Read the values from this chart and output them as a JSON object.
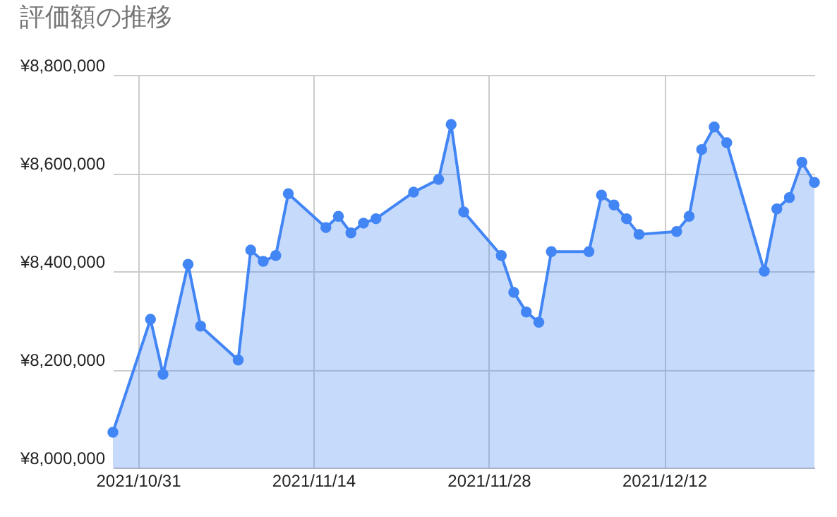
{
  "chart_data": {
    "type": "area",
    "title": "評価額の推移",
    "x": [
      "2021-10-29",
      "2021-11-01",
      "2021-11-02",
      "2021-11-04",
      "2021-11-05",
      "2021-11-08",
      "2021-11-09",
      "2021-11-10",
      "2021-11-11",
      "2021-11-12",
      "2021-11-15",
      "2021-11-16",
      "2021-11-17",
      "2021-11-18",
      "2021-11-19",
      "2021-11-22",
      "2021-11-24",
      "2021-11-25",
      "2021-11-26",
      "2021-11-29",
      "2021-11-30",
      "2021-12-01",
      "2021-12-02",
      "2021-12-03",
      "2021-12-06",
      "2021-12-07",
      "2021-12-08",
      "2021-12-09",
      "2021-12-10",
      "2021-12-13",
      "2021-12-14",
      "2021-12-15",
      "2021-12-16",
      "2021-12-17",
      "2021-12-20",
      "2021-12-21",
      "2021-12-22",
      "2021-12-23",
      "2021-12-24"
    ],
    "series": [
      {
        "color": "#4285f4",
        "values": [
          8072000,
          8302000,
          8190000,
          8414000,
          8288000,
          8219000,
          8443000,
          8420000,
          8432000,
          8558000,
          8489000,
          8512000,
          8478000,
          8498000,
          8507000,
          8561000,
          8587000,
          8699000,
          8521000,
          8432000,
          8357000,
          8317000,
          8296000,
          8440000,
          8440000,
          8555000,
          8535000,
          8507000,
          8475000,
          8481000,
          8512000,
          8648000,
          8694000,
          8662000,
          8400000,
          8527000,
          8550000,
          8622000,
          8581000
        ]
      }
    ],
    "xlim": [
      "2021-10-29",
      "2021-12-24"
    ],
    "xticks": [
      {
        "value": "2021-10-31",
        "label": "2021/10/31"
      },
      {
        "value": "2021-11-14",
        "label": "2021/11/14"
      },
      {
        "value": "2021-11-28",
        "label": "2021/11/28"
      },
      {
        "value": "2021-12-12",
        "label": "2021/12/12"
      }
    ],
    "ylim": [
      8000000,
      8800000
    ],
    "yticks": [
      {
        "value": 8000000,
        "label": "¥8,000,000"
      },
      {
        "value": 8200000,
        "label": "¥8,200,000"
      },
      {
        "value": 8400000,
        "label": "¥8,400,000"
      },
      {
        "value": 8600000,
        "label": "¥8,600,000"
      },
      {
        "value": 8800000,
        "label": "¥8,800,000"
      }
    ],
    "grid": true,
    "marker": "circle",
    "line_style": "solid"
  }
}
